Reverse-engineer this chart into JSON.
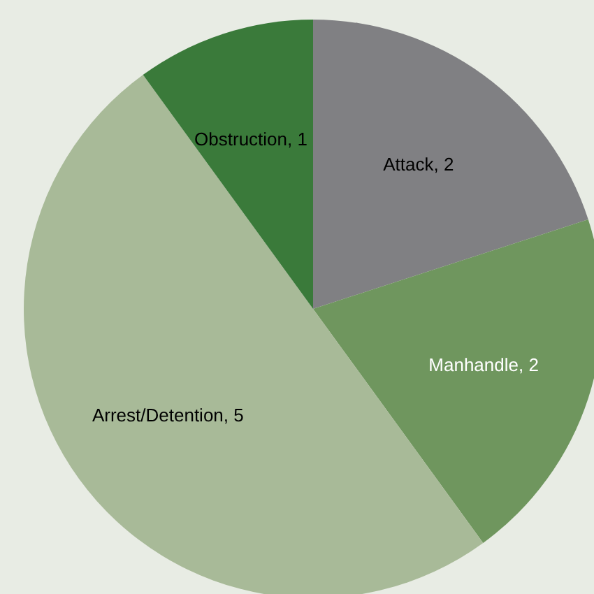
{
  "chart_data": {
    "type": "pie",
    "categories": [
      "Attack",
      "Manhandle",
      "Arrest/Detention",
      "Obstruction"
    ],
    "values": [
      2,
      2,
      5,
      1
    ],
    "value_labels": [
      ", 2",
      ", 2",
      ", 5",
      ", 1"
    ],
    "colors": [
      "#808083",
      "#6f965e",
      "#a8ba98",
      "#3a7a3a"
    ],
    "legend": false
  }
}
